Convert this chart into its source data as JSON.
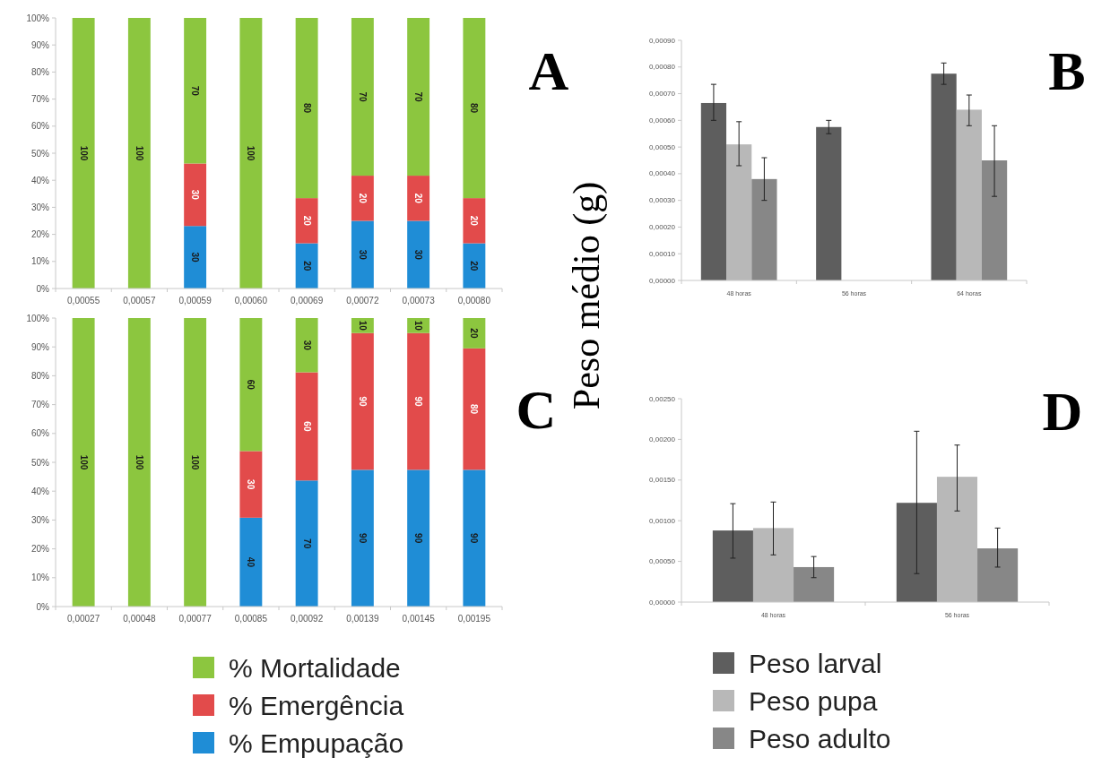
{
  "chart_data": [
    {
      "type": "bar",
      "title": "A",
      "stacked": true,
      "legend": false,
      "grid": false,
      "categories": [
        "0,00055",
        "0,00057",
        "0,00059",
        "0,00060",
        "0,00069",
        "0,00072",
        "0,00073",
        "0,00080"
      ],
      "ylim": [
        0,
        100
      ],
      "yticks": [
        {
          "value": 0,
          "label": "0%"
        },
        {
          "value": 10,
          "label": "10%"
        },
        {
          "value": 20,
          "label": "20%"
        },
        {
          "value": 30,
          "label": "30%"
        },
        {
          "value": 40,
          "label": "40%"
        },
        {
          "value": 50,
          "label": "50%"
        },
        {
          "value": 60,
          "label": "60%"
        },
        {
          "value": 70,
          "label": "70%"
        },
        {
          "value": 80,
          "label": "80%"
        },
        {
          "value": 90,
          "label": "90%"
        },
        {
          "value": 100,
          "label": "100%"
        }
      ],
      "series": [
        {
          "color": "#1f8dd6",
          "values": [
            0,
            0,
            23.1,
            0,
            16.7,
            25,
            25,
            16.7
          ]
        },
        {
          "color": "#e24b4b",
          "values": [
            0,
            0,
            23.1,
            0,
            16.7,
            16.7,
            16.7,
            16.7
          ]
        },
        {
          "color": "#8cc63f",
          "values": [
            100,
            100,
            53.8,
            100,
            66.6,
            58.3,
            58.3,
            66.6
          ]
        }
      ],
      "annotations": [
        "100",
        "100",
        "30",
        "30",
        "70",
        "100",
        "20",
        "20",
        "80",
        "30",
        "20",
        "70",
        "30",
        "20",
        "70",
        "20",
        "20",
        "80"
      ]
    },
    {
      "type": "bar",
      "title": "B",
      "ylabel": "Peso médio (g)",
      "legend": false,
      "grid": false,
      "categories": [
        "48 horas",
        "56 horas",
        "64 horas"
      ],
      "ylim": [
        0,
        0.0009
      ],
      "yticks": [
        {
          "value": 0,
          "label": "0,00000"
        },
        {
          "value": 0.0001,
          "label": "0,00010"
        },
        {
          "value": 0.0002,
          "label": "0,00020"
        },
        {
          "value": 0.0003,
          "label": "0,00030"
        },
        {
          "value": 0.0004,
          "label": "0,00040"
        },
        {
          "value": 0.0005,
          "label": "0,00050"
        },
        {
          "value": 0.0006,
          "label": "0,00060"
        },
        {
          "value": 0.0007,
          "label": "0,00070"
        },
        {
          "value": 0.0008,
          "label": "0,00080"
        },
        {
          "value": 0.0009,
          "label": "0,00090"
        }
      ],
      "series": [
        {
          "color": "#5e5e5e",
          "values": [
            0.000665,
            0.000575,
            0.000775
          ],
          "errors": [
            [
              0.0006,
              0.000735
            ],
            [
              0.00055,
              0.0006
            ],
            [
              0.000735,
              0.000815
            ]
          ]
        },
        {
          "color": "#b8b8b8",
          "values": [
            0.00051,
            null,
            0.00064
          ],
          "errors": [
            [
              0.00043,
              0.000595
            ],
            null,
            [
              0.00058,
              0.000695
            ]
          ]
        },
        {
          "color": "#878787",
          "values": [
            0.00038,
            null,
            0.00045
          ],
          "errors": [
            [
              0.0003,
              0.00046
            ],
            null,
            [
              0.000315,
              0.00058
            ]
          ]
        }
      ]
    },
    {
      "type": "bar",
      "title": "C",
      "stacked": true,
      "legend": "bottom",
      "grid": false,
      "categories": [
        "0,00027",
        "0,00048",
        "0,00077",
        "0,00085",
        "0,00092",
        "0,00139",
        "0,00145",
        "0,00195"
      ],
      "ylim": [
        0,
        100
      ],
      "yticks": [
        {
          "value": 0,
          "label": "0%"
        },
        {
          "value": 10,
          "label": "10%"
        },
        {
          "value": 20,
          "label": "20%"
        },
        {
          "value": 30,
          "label": "30%"
        },
        {
          "value": 40,
          "label": "40%"
        },
        {
          "value": 50,
          "label": "50%"
        },
        {
          "value": 60,
          "label": "60%"
        },
        {
          "value": 70,
          "label": "70%"
        },
        {
          "value": 80,
          "label": "80%"
        },
        {
          "value": 90,
          "label": "90%"
        },
        {
          "value": 100,
          "label": "100%"
        }
      ],
      "series": [
        {
          "name": "% Empupação",
          "color": "#1f8dd6",
          "values": [
            0,
            0,
            0,
            30.8,
            43.7,
            47.4,
            47.4,
            47.4
          ]
        },
        {
          "name": "% Emergência",
          "color": "#e24b4b",
          "values": [
            0,
            0,
            0,
            23.1,
            37.5,
            47.4,
            47.4,
            42.1
          ]
        },
        {
          "name": "% Mortalidade",
          "color": "#8cc63f",
          "values": [
            100,
            100,
            100,
            46.1,
            18.8,
            5.2,
            5.2,
            10.5
          ]
        }
      ],
      "annotations": [
        "100",
        "100",
        "100",
        "40",
        "30",
        "60",
        "70",
        "60",
        "30",
        "90",
        "90",
        "10",
        "90",
        "90",
        "10",
        "90",
        "80",
        "20"
      ]
    },
    {
      "type": "bar",
      "title": "D",
      "legend": "bottom",
      "grid": false,
      "categories": [
        "48 horas",
        "56 horas"
      ],
      "ylim": [
        0,
        0.0025
      ],
      "yticks": [
        {
          "value": 0,
          "label": "0,00000"
        },
        {
          "value": 0.0005,
          "label": "0,00050"
        },
        {
          "value": 0.001,
          "label": "0,00100"
        },
        {
          "value": 0.0015,
          "label": "0,00150"
        },
        {
          "value": 0.002,
          "label": "0,00200"
        },
        {
          "value": 0.0025,
          "label": "0,00250"
        }
      ],
      "series": [
        {
          "name": "Peso larval",
          "color": "#5e5e5e",
          "values": [
            0.00088,
            0.00122
          ],
          "errors": [
            [
              0.00054,
              0.00121
            ],
            [
              0.00035,
              0.0021
            ]
          ]
        },
        {
          "name": "Peso pupa",
          "color": "#b8b8b8",
          "values": [
            0.00091,
            0.00154
          ],
          "errors": [
            [
              0.00058,
              0.00123
            ],
            [
              0.00112,
              0.00193
            ]
          ]
        },
        {
          "name": "Peso adulto",
          "color": "#878787",
          "values": [
            0.00043,
            0.00066
          ],
          "errors": [
            [
              0.0003,
              0.00056
            ],
            [
              0.00043,
              0.00091
            ]
          ]
        }
      ]
    }
  ]
}
